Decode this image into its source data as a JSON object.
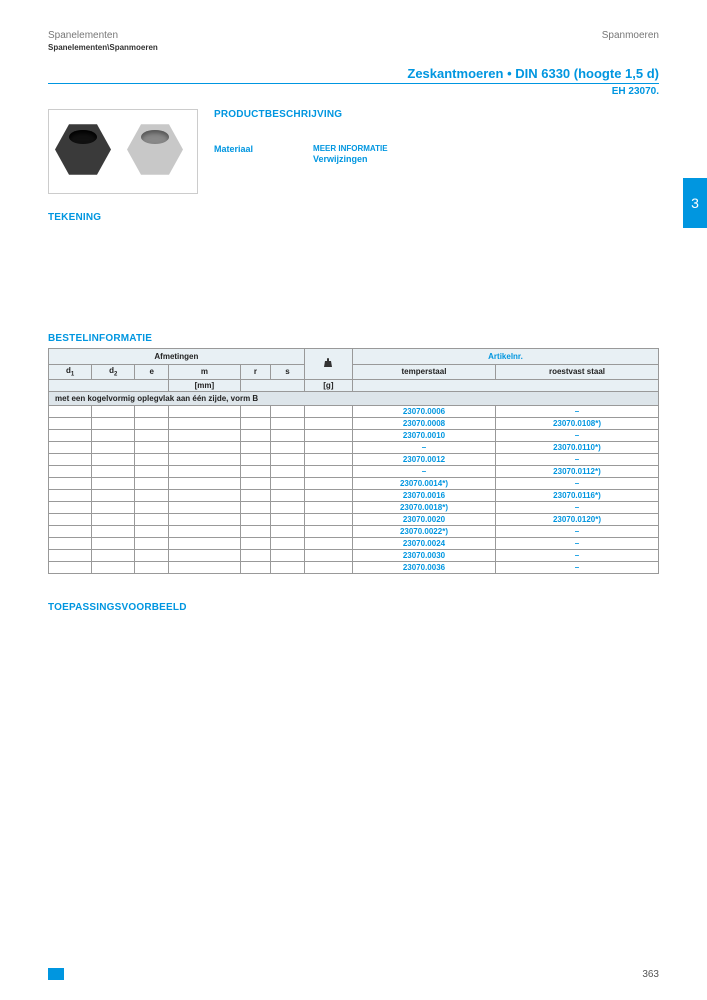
{
  "header": {
    "left": "Spanelementen",
    "right": "Spanmoeren",
    "breadcrumb": "Spanelementen\\Spanmoeren"
  },
  "title": {
    "main": "Zeskantmoeren • DIN 6330 (hoogte 1,5 d)",
    "ref": "EH 23070."
  },
  "sections": {
    "product_desc": "PRODUCTBESCHRIJVING",
    "material": "Materiaal",
    "more_info": "MEER INFORMATIE",
    "more_sub": "Verwijzingen",
    "drawing": "TEKENING",
    "order": "BESTELINFORMATIE",
    "application": "TOEPASSINGSVOORBEELD"
  },
  "sidetab": "3",
  "table": {
    "group_afm": "Afmetingen",
    "group_art": "Artikelnr.",
    "cols": {
      "d1": "d",
      "d1sub": "1",
      "d2": "d",
      "d2sub": "2",
      "e": "e",
      "m": "m",
      "r": "r",
      "s": "s",
      "unit_mm": "[mm]",
      "unit_g": "[g]",
      "temper": "temperstaal",
      "rvs": "roestvast staal"
    },
    "group_row": "met een kogelvormig oplegvlak aan één zijde, vorm B",
    "rows": [
      {
        "d1": "",
        "d2": "",
        "e": "",
        "m": "",
        "r": "",
        "s": "",
        "g": "",
        "t": "23070.0006",
        "v": "–"
      },
      {
        "d1": "",
        "d2": "",
        "e": "",
        "m": "",
        "r": "",
        "s": "",
        "g": "",
        "t": "23070.0008",
        "v": "23070.0108*)"
      },
      {
        "d1": "",
        "d2": "",
        "e": "",
        "m": "",
        "r": "",
        "s": "",
        "g": "",
        "t": "23070.0010",
        "v": "–"
      },
      {
        "d1": "",
        "d2": "",
        "e": "",
        "m": "",
        "r": "",
        "s": "",
        "g": "",
        "t": "–",
        "v": "23070.0110*)"
      },
      {
        "d1": "",
        "d2": "",
        "e": "",
        "m": "",
        "r": "",
        "s": "",
        "g": "",
        "t": "23070.0012",
        "v": "–"
      },
      {
        "d1": "",
        "d2": "",
        "e": "",
        "m": "",
        "r": "",
        "s": "",
        "g": "",
        "t": "–",
        "v": "23070.0112*)"
      },
      {
        "d1": "",
        "d2": "",
        "e": "",
        "m": "",
        "r": "",
        "s": "",
        "g": "",
        "t": "23070.0014*)",
        "v": "–"
      },
      {
        "d1": "",
        "d2": "",
        "e": "",
        "m": "",
        "r": "",
        "s": "",
        "g": "",
        "t": "23070.0016",
        "v": "23070.0116*)"
      },
      {
        "d1": "",
        "d2": "",
        "e": "",
        "m": "",
        "r": "",
        "s": "",
        "g": "",
        "t": "23070.0018*)",
        "v": "–"
      },
      {
        "d1": "",
        "d2": "",
        "e": "",
        "m": "",
        "r": "",
        "s": "",
        "g": "",
        "t": "23070.0020",
        "v": "23070.0120*)"
      },
      {
        "d1": "",
        "d2": "",
        "e": "",
        "m": "",
        "r": "",
        "s": "",
        "g": "",
        "t": "23070.0022*)",
        "v": "–"
      },
      {
        "d1": "",
        "d2": "",
        "e": "",
        "m": "",
        "r": "",
        "s": "",
        "g": "",
        "t": "23070.0024",
        "v": "–"
      },
      {
        "d1": "",
        "d2": "",
        "e": "",
        "m": "",
        "r": "",
        "s": "",
        "g": "",
        "t": "23070.0030",
        "v": "–"
      },
      {
        "d1": "",
        "d2": "",
        "e": "",
        "m": "",
        "r": "",
        "s": "",
        "g": "",
        "t": "23070.0036",
        "v": "–"
      }
    ]
  },
  "pagenum": "363",
  "colors": {
    "accent": "#0096e0"
  }
}
